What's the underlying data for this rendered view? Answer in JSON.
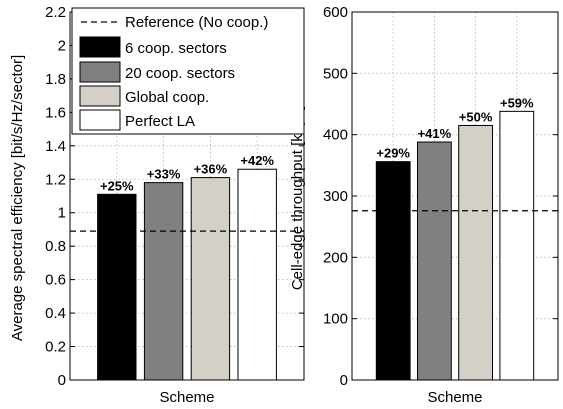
{
  "chart_data": [
    {
      "type": "bar",
      "categories": [
        "6 coop. sectors",
        "20 coop. sectors",
        "Global coop.",
        "Perfect LA"
      ],
      "values": [
        1.11,
        1.18,
        1.21,
        1.26
      ],
      "data_labels": [
        "+25%",
        "+33%",
        "+36%",
        "+42%"
      ],
      "reference": {
        "name": "Reference (No coop.)",
        "value": 0.89
      },
      "xlabel": "Scheme",
      "ylabel": "Average spectral efficiency [bit/s/Hz/sector]",
      "ylim": [
        0,
        2.2
      ],
      "yticks": [
        "0",
        "0.2",
        "0.4",
        "0.6",
        "0.8",
        "1",
        "1.2",
        "1.4",
        "1.6",
        "1.8",
        "2",
        "2.2"
      ],
      "grid": true,
      "legend": {
        "placement": "top-right",
        "entries": [
          "Reference (No coop.)",
          "6 coop. sectors",
          "20 coop. sectors",
          "Global coop.",
          "Perfect LA"
        ]
      }
    },
    {
      "type": "bar",
      "categories": [
        "6 coop. sectors",
        "20 coop. sectors",
        "Global coop.",
        "Perfect LA"
      ],
      "values": [
        356,
        388,
        415,
        438
      ],
      "data_labels": [
        "+29%",
        "+41%",
        "+50%",
        "+59%"
      ],
      "reference": {
        "name": "Reference (No coop.)",
        "value": 276
      },
      "xlabel": "Scheme",
      "ylabel": "Cell-edge throughput [kbps]",
      "ylim": [
        0,
        600
      ],
      "yticks": [
        "0",
        "100",
        "200",
        "300",
        "400",
        "500",
        "600"
      ],
      "grid": true
    }
  ],
  "colors": {
    "bar_fills": [
      "#000000",
      "#808080",
      "#d4d0c8",
      "#ffffff"
    ],
    "axis": "#000000",
    "grid": "#b0b0b0"
  }
}
